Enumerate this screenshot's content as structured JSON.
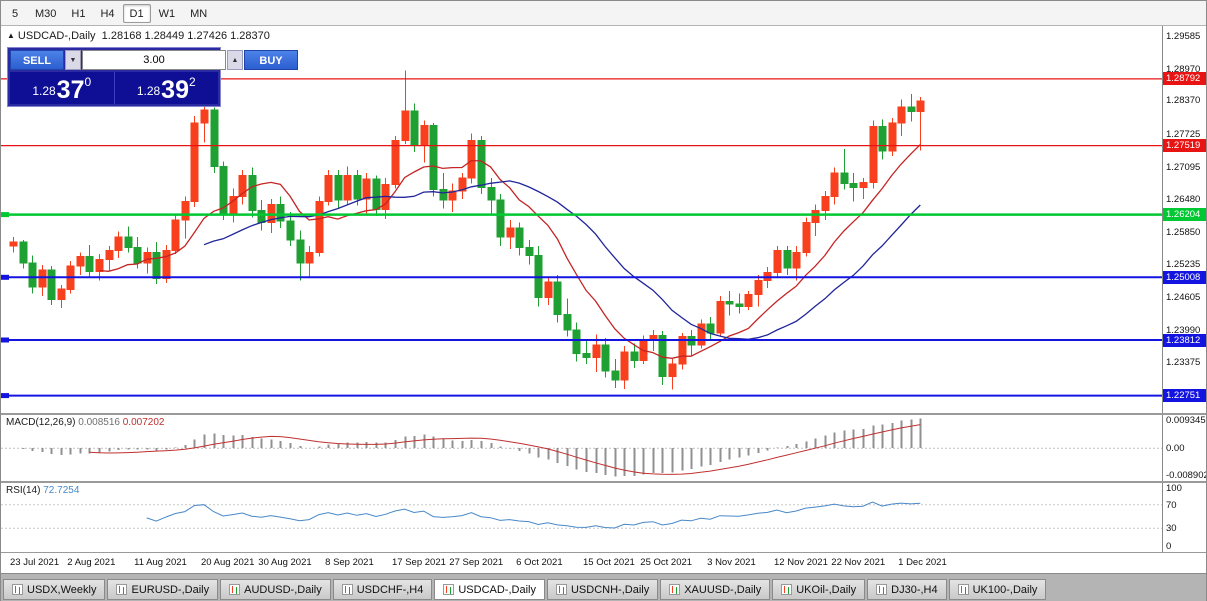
{
  "toolbar": {
    "timeframes": [
      {
        "label": "5",
        "active": false
      },
      {
        "label": "M30",
        "active": false
      },
      {
        "label": "H1",
        "active": false
      },
      {
        "label": "H4",
        "active": false
      },
      {
        "label": "D1",
        "active": true
      },
      {
        "label": "W1",
        "active": false
      },
      {
        "label": "MN",
        "active": false
      }
    ]
  },
  "icons": {
    "collapse": "▲",
    "up": "▲",
    "down": "▼"
  },
  "chart": {
    "header": {
      "symbol": "USDCAD-,Daily",
      "ohlc": "1.28168 1.28449 1.27426 1.28370"
    }
  },
  "trade": {
    "sell_label": "SELL",
    "buy_label": "BUY",
    "volume": "3.00",
    "sell_price": {
      "base": "1.28",
      "big": "37",
      "sup": "0"
    },
    "buy_price": {
      "base": "1.28",
      "big": "39",
      "sup": "2"
    }
  },
  "chart_data": {
    "type": "candlestick",
    "symbol": "USDCAD-",
    "timeframe": "Daily",
    "current_bar": {
      "open": 1.28168,
      "high": 1.28449,
      "low": 1.27426,
      "close": 1.2837
    },
    "price_range": [
      1.2242,
      1.298
    ],
    "y_ticks": [
      "1.29585",
      "1.28970",
      "1.28370",
      "1.27725",
      "1.27095",
      "1.26480",
      "1.25850",
      "1.25235",
      "1.24605",
      "1.23990",
      "1.23375"
    ],
    "h_lines": [
      {
        "label": "1.28792",
        "value": 1.28792,
        "color": "#e81414",
        "width": 1.3,
        "marker": false
      },
      {
        "label": "1.27519",
        "value": 1.27519,
        "color": "#e81414",
        "width": 1.3,
        "marker": false
      },
      {
        "label": "1.26204",
        "value": 1.26204,
        "color": "#00c832",
        "width": 2.5,
        "marker": true
      },
      {
        "label": "1.25008",
        "value": 1.25008,
        "color": "#1414e0",
        "width": 2,
        "marker": true
      },
      {
        "label": "1.23812",
        "value": 1.23812,
        "color": "#1414e0",
        "width": 2,
        "marker": true
      },
      {
        "label": "1.22751",
        "value": 1.22751,
        "color": "#1414e0",
        "width": 2,
        "marker": true
      }
    ],
    "candles": [
      [
        1.256,
        1.2578,
        1.2548,
        1.2568
      ],
      [
        1.2568,
        1.2572,
        1.2518,
        1.2528
      ],
      [
        1.2528,
        1.2542,
        1.247,
        1.2482
      ],
      [
        1.2482,
        1.2524,
        1.2465,
        1.2515
      ],
      [
        1.2515,
        1.2522,
        1.2448,
        1.2458
      ],
      [
        1.2458,
        1.2486,
        1.2442,
        1.2478
      ],
      [
        1.2478,
        1.2532,
        1.247,
        1.2522
      ],
      [
        1.2522,
        1.2548,
        1.2505,
        1.254
      ],
      [
        1.254,
        1.2562,
        1.2502,
        1.2512
      ],
      [
        1.2512,
        1.2545,
        1.2495,
        1.2535
      ],
      [
        1.2535,
        1.256,
        1.2512,
        1.2552
      ],
      [
        1.2552,
        1.2588,
        1.2538,
        1.2578
      ],
      [
        1.2578,
        1.2598,
        1.2548,
        1.2558
      ],
      [
        1.2558,
        1.2578,
        1.2518,
        1.2528
      ],
      [
        1.2528,
        1.2558,
        1.2508,
        1.2548
      ],
      [
        1.2548,
        1.2568,
        1.2488,
        1.2498
      ],
      [
        1.2498,
        1.2562,
        1.249,
        1.2552
      ],
      [
        1.2552,
        1.262,
        1.2545,
        1.261
      ],
      [
        1.261,
        1.2655,
        1.2575,
        1.2645
      ],
      [
        1.2645,
        1.2808,
        1.2635,
        1.2795
      ],
      [
        1.2795,
        1.2835,
        1.2758,
        1.282
      ],
      [
        1.282,
        1.2825,
        1.27,
        1.2712
      ],
      [
        1.2712,
        1.2722,
        1.261,
        1.2622
      ],
      [
        1.2622,
        1.267,
        1.2605,
        1.2655
      ],
      [
        1.2655,
        1.2705,
        1.264,
        1.2695
      ],
      [
        1.2695,
        1.271,
        1.2615,
        1.2628
      ],
      [
        1.2628,
        1.2648,
        1.259,
        1.2605
      ],
      [
        1.2605,
        1.265,
        1.2585,
        1.264
      ],
      [
        1.264,
        1.2655,
        1.2595,
        1.2608
      ],
      [
        1.2608,
        1.2625,
        1.256,
        1.2572
      ],
      [
        1.2572,
        1.259,
        1.2495,
        1.2528
      ],
      [
        1.2528,
        1.256,
        1.25,
        1.2548
      ],
      [
        1.2548,
        1.2655,
        1.254,
        1.2645
      ],
      [
        1.2645,
        1.2705,
        1.2638,
        1.2695
      ],
      [
        1.2695,
        1.2705,
        1.2632,
        1.2648
      ],
      [
        1.2648,
        1.2712,
        1.264,
        1.2695
      ],
      [
        1.2695,
        1.2705,
        1.2638,
        1.265
      ],
      [
        1.265,
        1.27,
        1.262,
        1.2688
      ],
      [
        1.2688,
        1.2695,
        1.2618,
        1.263
      ],
      [
        1.263,
        1.269,
        1.2612,
        1.2678
      ],
      [
        1.2678,
        1.277,
        1.267,
        1.2762
      ],
      [
        1.2762,
        1.2895,
        1.2755,
        1.2818
      ],
      [
        1.2818,
        1.2832,
        1.274,
        1.2752
      ],
      [
        1.2752,
        1.28,
        1.272,
        1.279
      ],
      [
        1.279,
        1.2795,
        1.2655,
        1.2668
      ],
      [
        1.2668,
        1.27,
        1.2632,
        1.2648
      ],
      [
        1.2648,
        1.268,
        1.2625,
        1.2665
      ],
      [
        1.2665,
        1.27,
        1.265,
        1.269
      ],
      [
        1.269,
        1.2775,
        1.268,
        1.2762
      ],
      [
        1.2762,
        1.277,
        1.266,
        1.2672
      ],
      [
        1.2672,
        1.269,
        1.262,
        1.2648
      ],
      [
        1.2648,
        1.266,
        1.256,
        1.2578
      ],
      [
        1.2578,
        1.261,
        1.2555,
        1.2595
      ],
      [
        1.2595,
        1.2605,
        1.2542,
        1.2558
      ],
      [
        1.2558,
        1.2572,
        1.2525,
        1.2542
      ],
      [
        1.2542,
        1.256,
        1.2445,
        1.2462
      ],
      [
        1.2462,
        1.2502,
        1.2448,
        1.2492
      ],
      [
        1.2492,
        1.2505,
        1.2415,
        1.243
      ],
      [
        1.243,
        1.246,
        1.2388,
        1.24
      ],
      [
        1.24,
        1.2415,
        1.234,
        1.2355
      ],
      [
        1.2355,
        1.238,
        1.2335,
        1.2348
      ],
      [
        1.2348,
        1.2392,
        1.232,
        1.2372
      ],
      [
        1.2372,
        1.2385,
        1.231,
        1.2322
      ],
      [
        1.2322,
        1.2345,
        1.229,
        1.2305
      ],
      [
        1.2305,
        1.237,
        1.2288,
        1.2358
      ],
      [
        1.2358,
        1.2375,
        1.2328,
        1.2342
      ],
      [
        1.2342,
        1.239,
        1.2335,
        1.238
      ],
      [
        1.238,
        1.24,
        1.236,
        1.239
      ],
      [
        1.239,
        1.2398,
        1.2295,
        1.2312
      ],
      [
        1.2312,
        1.2345,
        1.2287,
        1.2335
      ],
      [
        1.2335,
        1.2395,
        1.2325,
        1.2388
      ],
      [
        1.2388,
        1.24,
        1.235,
        1.2372
      ],
      [
        1.2372,
        1.242,
        1.2365,
        1.2412
      ],
      [
        1.2412,
        1.2425,
        1.238,
        1.2395
      ],
      [
        1.2395,
        1.2465,
        1.2388,
        1.2455
      ],
      [
        1.2455,
        1.2475,
        1.2428,
        1.245
      ],
      [
        1.245,
        1.247,
        1.2432,
        1.2445
      ],
      [
        1.2445,
        1.2475,
        1.2438,
        1.2468
      ],
      [
        1.2468,
        1.2505,
        1.2445,
        1.2495
      ],
      [
        1.2495,
        1.252,
        1.248,
        1.251
      ],
      [
        1.251,
        1.256,
        1.25,
        1.2552
      ],
      [
        1.2552,
        1.256,
        1.2505,
        1.2518
      ],
      [
        1.2518,
        1.256,
        1.2495,
        1.2548
      ],
      [
        1.2548,
        1.2615,
        1.254,
        1.2605
      ],
      [
        1.2605,
        1.264,
        1.258,
        1.2628
      ],
      [
        1.2628,
        1.2665,
        1.261,
        1.2655
      ],
      [
        1.2655,
        1.271,
        1.264,
        1.27
      ],
      [
        1.27,
        1.2745,
        1.2668,
        1.268
      ],
      [
        1.268,
        1.27,
        1.2645,
        1.2672
      ],
      [
        1.2672,
        1.269,
        1.265,
        1.2682
      ],
      [
        1.2682,
        1.28,
        1.267,
        1.2788
      ],
      [
        1.2788,
        1.2802,
        1.2725,
        1.2742
      ],
      [
        1.2742,
        1.2805,
        1.2732,
        1.2795
      ],
      [
        1.2795,
        1.284,
        1.277,
        1.2826
      ],
      [
        1.2826,
        1.285,
        1.2798,
        1.2817
      ],
      [
        1.28168,
        1.28449,
        1.27426,
        1.2837
      ]
    ],
    "x_labels": [
      {
        "i": 0,
        "t": "23 Jul 2021"
      },
      {
        "i": 6,
        "t": "2 Aug 2021"
      },
      {
        "i": 13,
        "t": "11 Aug 2021"
      },
      {
        "i": 20,
        "t": "20 Aug 2021"
      },
      {
        "i": 26,
        "t": "30 Aug 2021"
      },
      {
        "i": 33,
        "t": "8 Sep 2021"
      },
      {
        "i": 40,
        "t": "17 Sep 2021"
      },
      {
        "i": 46,
        "t": "27 Sep 2021"
      },
      {
        "i": 53,
        "t": "6 Oct 2021"
      },
      {
        "i": 60,
        "t": "15 Oct 2021"
      },
      {
        "i": 66,
        "t": "25 Oct 2021"
      },
      {
        "i": 73,
        "t": "3 Nov 2021"
      },
      {
        "i": 80,
        "t": "12 Nov 2021"
      },
      {
        "i": 86,
        "t": "22 Nov 2021"
      },
      {
        "i": 93,
        "t": "1 Dec 2021"
      }
    ],
    "indicators": {
      "ma_fast_period": 10,
      "ma_slow_period": 21
    },
    "macd": {
      "label": "MACD(12,26,9)",
      "main_value": "0.008516",
      "signal_value": "0.007202",
      "axis": [
        "0.009345",
        "0.00",
        "-0.008902"
      ],
      "range": [
        -0.008902,
        0.009345
      ]
    },
    "rsi": {
      "label": "RSI(14)",
      "value": "72.7254",
      "axis": [
        "100",
        "70",
        "30",
        "0"
      ],
      "levels": [
        70,
        30
      ]
    }
  },
  "tabs": [
    {
      "label": "USDX,Weekly",
      "active": false
    },
    {
      "label": "EURUSD-,Daily",
      "active": false
    },
    {
      "label": "AUDUSD-,Daily",
      "active": false
    },
    {
      "label": "USDCHF-,H4",
      "active": false
    },
    {
      "label": "USDCAD-,Daily",
      "active": true
    },
    {
      "label": "USDCNH-,Daily",
      "active": false
    },
    {
      "label": "XAUUSD-,Daily",
      "active": false
    },
    {
      "label": "UKOil-,Daily",
      "active": false
    },
    {
      "label": "DJ30-,H4",
      "active": false
    },
    {
      "label": "UK100-,Daily",
      "active": false
    }
  ],
  "colors": {
    "bull": "#f8401e",
    "bear": "#1ea032",
    "ma_fast": "#c42424",
    "ma_slow": "#20269a",
    "macd_hist": "#909090",
    "macd_signal": "#c03030",
    "rsi_line": "#4888c8"
  }
}
